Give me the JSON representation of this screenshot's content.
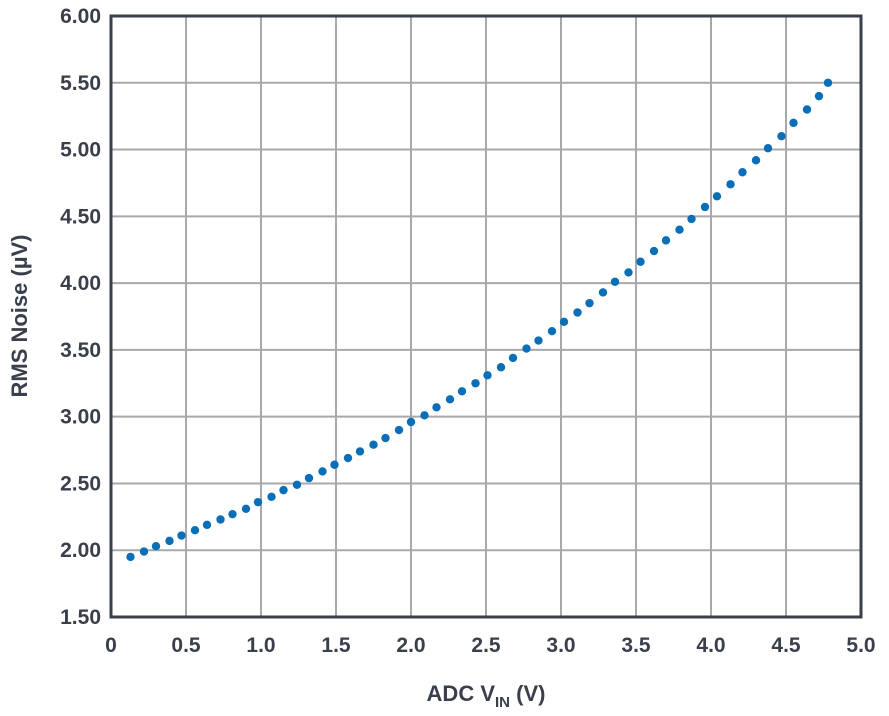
{
  "chart_data": {
    "type": "scatter",
    "title": "",
    "xlabel": {
      "prefix": "ADC V",
      "subscript": "IN",
      "suffix": " (V)"
    },
    "ylabel": "RMS Noise (µV)",
    "xlim": [
      0,
      5.0
    ],
    "ylim": [
      1.5,
      6.0
    ],
    "grid": true,
    "x_ticks": [
      0,
      0.5,
      1.0,
      1.5,
      2.0,
      2.5,
      3.0,
      3.5,
      4.0,
      4.5,
      5.0
    ],
    "x_tick_labels": [
      "0",
      "0.5",
      "1.0",
      "1.5",
      "2.0",
      "2.5",
      "3.0",
      "3.5",
      "4.0",
      "4.5",
      "5.0"
    ],
    "y_ticks": [
      1.5,
      2.0,
      2.5,
      3.0,
      3.5,
      4.0,
      4.5,
      5.0,
      5.5,
      6.0
    ],
    "y_tick_labels": [
      "1.50",
      "2.00",
      "2.50",
      "3.00",
      "3.50",
      "4.00",
      "4.50",
      "5.00",
      "5.50",
      "6.00"
    ],
    "series": [
      {
        "name": "RMS Noise",
        "color": "#0b6fb8",
        "x": [
          0.13,
          0.22,
          0.3,
          0.39,
          0.47,
          0.56,
          0.64,
          0.73,
          0.81,
          0.9,
          0.98,
          1.07,
          1.15,
          1.24,
          1.32,
          1.41,
          1.49,
          1.58,
          1.66,
          1.75,
          1.83,
          1.92,
          2.0,
          2.09,
          2.17,
          2.26,
          2.34,
          2.43,
          2.51,
          2.6,
          2.68,
          2.77,
          2.85,
          2.94,
          3.02,
          3.11,
          3.19,
          3.28,
          3.36,
          3.45,
          3.53,
          3.62,
          3.7,
          3.79,
          3.87,
          3.96,
          4.04,
          4.13,
          4.21,
          4.3,
          4.38,
          4.47,
          4.55,
          4.64,
          4.72,
          4.78
        ],
        "y": [
          1.95,
          1.99,
          2.03,
          2.07,
          2.11,
          2.15,
          2.19,
          2.23,
          2.27,
          2.31,
          2.36,
          2.4,
          2.45,
          2.49,
          2.54,
          2.59,
          2.64,
          2.69,
          2.74,
          2.79,
          2.84,
          2.9,
          2.96,
          3.01,
          3.07,
          3.13,
          3.19,
          3.25,
          3.31,
          3.37,
          3.44,
          3.51,
          3.57,
          3.64,
          3.71,
          3.78,
          3.85,
          3.93,
          4.01,
          4.08,
          4.16,
          4.24,
          4.32,
          4.4,
          4.48,
          4.57,
          4.65,
          4.74,
          4.83,
          4.92,
          5.01,
          5.1,
          5.2,
          5.3,
          5.4,
          5.5
        ]
      }
    ]
  },
  "style": {
    "grid_color": "#a7a9ac",
    "frame_color": "#3a3f4c",
    "text_color": "#3a3f4c",
    "point_color": "#0b6fb8"
  }
}
